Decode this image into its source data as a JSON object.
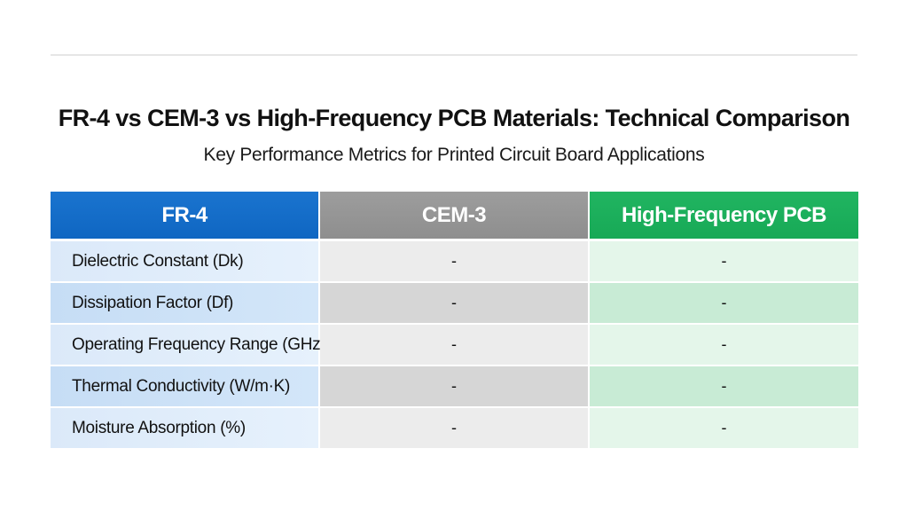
{
  "chart_data": {
    "type": "table",
    "title": "FR-4 vs CEM-3 vs High-Frequency PCB Materials: Technical Comparison",
    "subtitle": "Key Performance Metrics for Printed Circuit Board Applications",
    "columns": [
      "FR-4",
      "CEM-3",
      "High-Frequency PCB"
    ],
    "column_colors": [
      "#1a74cf",
      "#9d9d9d",
      "#21b561"
    ],
    "rows": [
      {
        "metric": "Dielectric Constant (Dk)",
        "cem3": "-",
        "hf": "-"
      },
      {
        "metric": "Dissipation Factor (Df)",
        "cem3": "-",
        "hf": "-"
      },
      {
        "metric": "Operating Frequency Range (GHz)",
        "cem3": "-",
        "hf": "-"
      },
      {
        "metric": "Thermal Conductivity (W/m·K)",
        "cem3": "-",
        "hf": "-"
      },
      {
        "metric": "Moisture Absorption (%)",
        "cem3": "-",
        "hf": "-"
      }
    ]
  }
}
